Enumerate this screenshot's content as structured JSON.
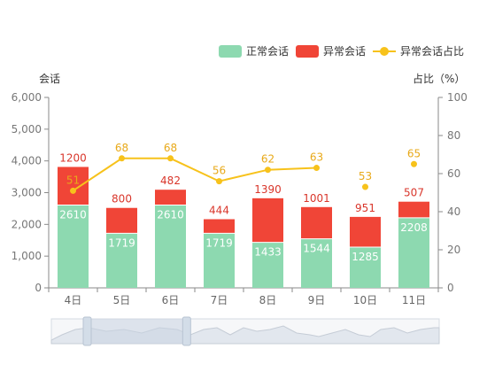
{
  "chart_data": {
    "type": "bar",
    "categories": [
      "4日",
      "5日",
      "6日",
      "7日",
      "8日",
      "9日",
      "10日",
      "11日"
    ],
    "series": [
      {
        "name": "正常会话",
        "type": "bar",
        "stack": true,
        "color": "#8dd9b0",
        "values": [
          2610,
          1719,
          2610,
          1719,
          1433,
          1544,
          1285,
          2208
        ]
      },
      {
        "name": "异常会话",
        "type": "bar",
        "stack": true,
        "color": "#f04537",
        "values": [
          1200,
          800,
          482,
          444,
          1390,
          1001,
          951,
          507
        ]
      },
      {
        "name": "异常会话占比",
        "type": "line",
        "axis": "right",
        "color": "#f7c21b",
        "values": [
          51,
          68,
          68,
          56,
          62,
          63,
          53,
          65
        ]
      }
    ],
    "y_left": {
      "label": "会话",
      "min": 0,
      "max": 6000,
      "ticks": [
        "0",
        "1,000",
        "2,000",
        "3,000",
        "4,000",
        "5,000",
        "6,000"
      ]
    },
    "y_right": {
      "label": "占比（%）",
      "min": 0,
      "max": 100,
      "ticks": [
        "0",
        "20",
        "40",
        "60",
        "80",
        "100"
      ]
    },
    "legend_position": "top-right",
    "grid": false
  },
  "colors": {
    "normal": "#8dd9b0",
    "abnormal": "#f04537",
    "ratio": "#f7c21b",
    "axis": "#8a8a8a",
    "normal_label": "#ffffff",
    "abnormal_label": "#d9362b",
    "ratio_label": "#e8a919"
  },
  "zoom_slider": {
    "start_fraction": 0.0,
    "end_fraction": 0.35
  }
}
